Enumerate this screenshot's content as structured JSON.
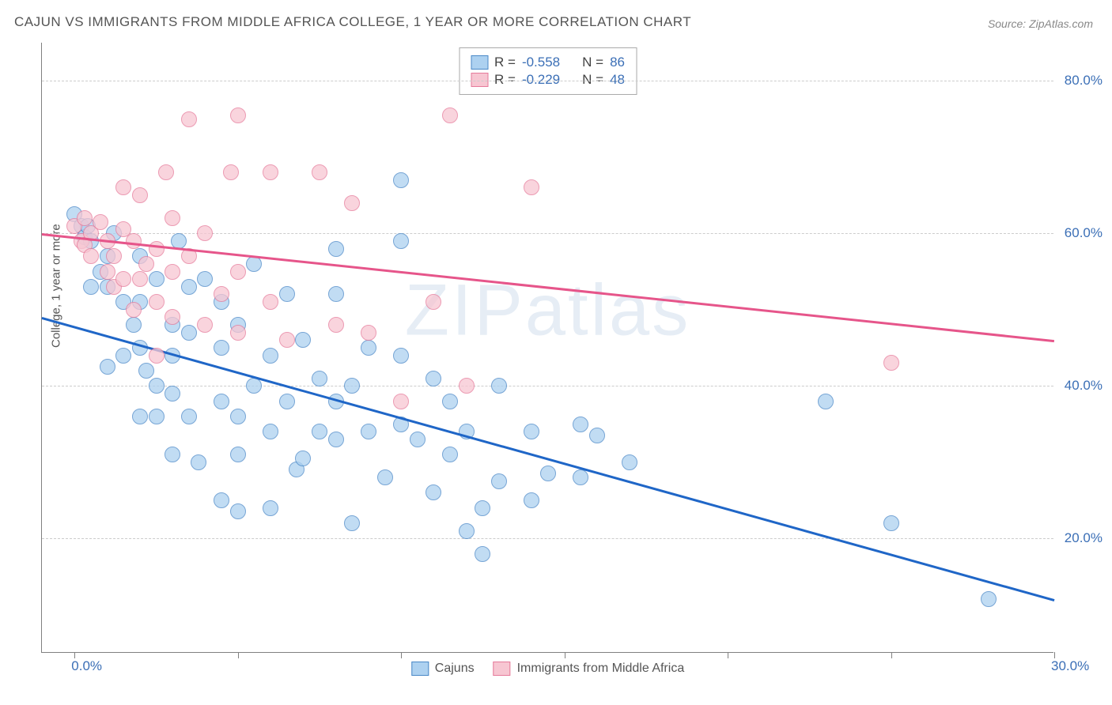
{
  "title": "CAJUN VS IMMIGRANTS FROM MIDDLE AFRICA COLLEGE, 1 YEAR OR MORE CORRELATION CHART",
  "source": "Source: ZipAtlas.com",
  "ylabel": "College, 1 year or more",
  "watermark": "ZIPatlas",
  "chart": {
    "type": "scatter",
    "x_range": [
      -1,
      30
    ],
    "y_range": [
      5,
      85
    ],
    "background_color": "#ffffff",
    "grid_color": "#cccccc",
    "grid_dash": true,
    "axis_color": "#808080",
    "tick_label_color": "#3b6fb6",
    "tick_label_fontsize": 17,
    "y_grid_values": [
      20,
      40,
      60,
      80
    ],
    "y_tick_labels": [
      "20.0%",
      "40.0%",
      "60.0%",
      "80.0%"
    ],
    "x_tick_values": [
      0,
      5,
      10,
      15,
      20,
      25,
      30
    ],
    "x_tick_labels": {
      "0": "0.0%",
      "30": "30.0%"
    },
    "point_radius": 10,
    "point_opacity": 0.75,
    "series": [
      {
        "name": "Cajuns",
        "fill": "#add1f0",
        "stroke": "#4a88c7",
        "trend_color": "#1f66c7",
        "R": "-0.558",
        "N": "86",
        "trend": {
          "x1": -1,
          "y1": 49,
          "x2": 30,
          "y2": 12
        },
        "points": [
          [
            0.0,
            62.5
          ],
          [
            0.2,
            61
          ],
          [
            0.3,
            59.5
          ],
          [
            0.4,
            61
          ],
          [
            0.5,
            59
          ],
          [
            0.8,
            55
          ],
          [
            0.5,
            53
          ],
          [
            1.0,
            57
          ],
          [
            1.0,
            53
          ],
          [
            1.2,
            60
          ],
          [
            1.5,
            51
          ],
          [
            1.5,
            44
          ],
          [
            1.0,
            42.5
          ],
          [
            1.8,
            48
          ],
          [
            2.0,
            57
          ],
          [
            2.0,
            51
          ],
          [
            2.0,
            45
          ],
          [
            2.0,
            36
          ],
          [
            2.2,
            42
          ],
          [
            2.5,
            40
          ],
          [
            2.5,
            36
          ],
          [
            2.5,
            54
          ],
          [
            3.0,
            48
          ],
          [
            3.0,
            44
          ],
          [
            3.0,
            39
          ],
          [
            3.0,
            31
          ],
          [
            3.5,
            47
          ],
          [
            3.5,
            36
          ],
          [
            3.5,
            53
          ],
          [
            4.0,
            54
          ],
          [
            3.8,
            30
          ],
          [
            4.5,
            38
          ],
          [
            4.5,
            45
          ],
          [
            4.5,
            25
          ],
          [
            5.0,
            23.5
          ],
          [
            5.0,
            31
          ],
          [
            5.0,
            36
          ],
          [
            5.0,
            48
          ],
          [
            5.5,
            56
          ],
          [
            5.5,
            40
          ],
          [
            6.0,
            44
          ],
          [
            6.0,
            34
          ],
          [
            6.5,
            38
          ],
          [
            6.5,
            52
          ],
          [
            6.8,
            29
          ],
          [
            7.0,
            46
          ],
          [
            7.0,
            30.5
          ],
          [
            7.5,
            41
          ],
          [
            7.5,
            34
          ],
          [
            8.0,
            58
          ],
          [
            8.0,
            52
          ],
          [
            8.0,
            38
          ],
          [
            8.0,
            33
          ],
          [
            8.5,
            22
          ],
          [
            8.5,
            40
          ],
          [
            9.0,
            45
          ],
          [
            9.0,
            34
          ],
          [
            9.5,
            28
          ],
          [
            10.0,
            59
          ],
          [
            10.0,
            35
          ],
          [
            10.0,
            67
          ],
          [
            10.5,
            33
          ],
          [
            11.0,
            41
          ],
          [
            11.0,
            26
          ],
          [
            11.5,
            31
          ],
          [
            11.5,
            38
          ],
          [
            12.0,
            21
          ],
          [
            12.0,
            34
          ],
          [
            12.5,
            24
          ],
          [
            12.5,
            18
          ],
          [
            13.0,
            40
          ],
          [
            13.0,
            27.5
          ],
          [
            14.0,
            34
          ],
          [
            14.0,
            25
          ],
          [
            14.5,
            28.5
          ],
          [
            15.5,
            35
          ],
          [
            15.5,
            28
          ],
          [
            16.0,
            33.5
          ],
          [
            17.0,
            30
          ],
          [
            23.0,
            38
          ],
          [
            25.0,
            22
          ],
          [
            28.0,
            12
          ],
          [
            10.0,
            44
          ],
          [
            6.0,
            24
          ],
          [
            4.5,
            51
          ],
          [
            3.2,
            59
          ]
        ]
      },
      {
        "name": "Immigrants from Middle Africa",
        "fill": "#f7c6d2",
        "stroke": "#e67a9a",
        "trend_color": "#e6558a",
        "R": "-0.229",
        "N": "48",
        "trend": {
          "x1": -1,
          "y1": 60,
          "x2": 30,
          "y2": 46
        },
        "points": [
          [
            0.0,
            61
          ],
          [
            0.2,
            59
          ],
          [
            0.3,
            62
          ],
          [
            0.3,
            58.5
          ],
          [
            0.5,
            60
          ],
          [
            0.5,
            57
          ],
          [
            0.8,
            61.5
          ],
          [
            1.0,
            59
          ],
          [
            1.0,
            55
          ],
          [
            1.2,
            57
          ],
          [
            1.2,
            53
          ],
          [
            1.5,
            66
          ],
          [
            1.5,
            60.5
          ],
          [
            1.5,
            54
          ],
          [
            1.8,
            59
          ],
          [
            1.8,
            50
          ],
          [
            2.0,
            65
          ],
          [
            2.0,
            54
          ],
          [
            2.2,
            56
          ],
          [
            2.5,
            58
          ],
          [
            2.5,
            51
          ],
          [
            2.5,
            44
          ],
          [
            2.8,
            68
          ],
          [
            3.0,
            55
          ],
          [
            3.0,
            49
          ],
          [
            3.0,
            62
          ],
          [
            3.5,
            75
          ],
          [
            3.5,
            57
          ],
          [
            4.0,
            60
          ],
          [
            4.0,
            48
          ],
          [
            4.5,
            52
          ],
          [
            5.0,
            75.5
          ],
          [
            5.0,
            55
          ],
          [
            5.0,
            47
          ],
          [
            6.0,
            68
          ],
          [
            6.0,
            51
          ],
          [
            6.5,
            46
          ],
          [
            7.5,
            68
          ],
          [
            8.0,
            48
          ],
          [
            8.5,
            64
          ],
          [
            9.0,
            47
          ],
          [
            10.0,
            38
          ],
          [
            11.0,
            51
          ],
          [
            11.5,
            75.5
          ],
          [
            12.0,
            40
          ],
          [
            14.0,
            66
          ],
          [
            25.0,
            43
          ],
          [
            4.8,
            68
          ]
        ]
      }
    ]
  },
  "legend_top": {
    "rows": [
      {
        "swatch_fill": "#add1f0",
        "swatch_stroke": "#4a88c7",
        "r_label": "R =",
        "r_val": "-0.558",
        "n_label": "N =",
        "n_val": "86"
      },
      {
        "swatch_fill": "#f7c6d2",
        "swatch_stroke": "#e67a9a",
        "r_label": "R =",
        "r_val": "-0.229",
        "n_label": "N =",
        "n_val": "48"
      }
    ]
  },
  "legend_bottom": {
    "items": [
      {
        "swatch_fill": "#add1f0",
        "swatch_stroke": "#4a88c7",
        "label": "Cajuns"
      },
      {
        "swatch_fill": "#f7c6d2",
        "swatch_stroke": "#e67a9a",
        "label": "Immigrants from Middle Africa"
      }
    ]
  }
}
